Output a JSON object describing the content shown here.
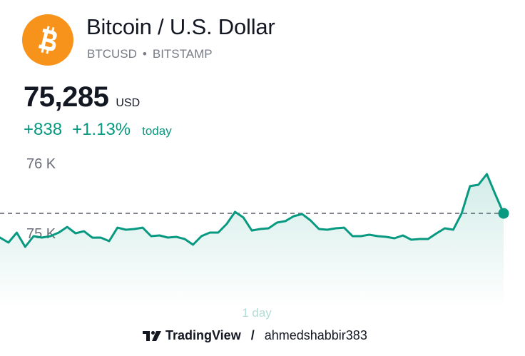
{
  "header": {
    "title": "Bitcoin / U.S. Dollar",
    "symbol": "BTCUSD",
    "separator": "•",
    "exchange": "BITSTAMP",
    "logo_icon": "bitcoin-icon",
    "logo_color": "#f7931a"
  },
  "quote": {
    "price": "75,285",
    "currency": "USD",
    "change_abs": "+838",
    "change_pct": "+1.13%",
    "change_label": "today",
    "up_color": "#089981"
  },
  "chart_data": {
    "type": "area",
    "y_ticks": [
      {
        "value": 76000,
        "label": "76 K"
      },
      {
        "value": 75000,
        "label": "75 K"
      }
    ],
    "period_label": "1 day",
    "current_value": 75285,
    "line_color": "#089981",
    "values": [
      74939,
      74867,
      75009,
      74806,
      74959,
      74939,
      74959,
      75010,
      75091,
      75000,
      75030,
      74938,
      74939,
      74888,
      75081,
      75051,
      75061,
      75081,
      74959,
      74969,
      74939,
      74949,
      74918,
      74837,
      74959,
      75010,
      75010,
      75133,
      75306,
      75225,
      75040,
      75061,
      75071,
      75153,
      75174,
      75245,
      75275,
      75184,
      75061,
      75051,
      75071,
      75081,
      74959,
      74959,
      74980,
      74959,
      74949,
      74929,
      74969,
      74908,
      74918,
      74918,
      74999,
      75071,
      75051,
      75285,
      75674,
      75694,
      75847,
      75561,
      75285
    ]
  },
  "footer": {
    "brand": "TradingView",
    "separator": "/",
    "author": "ahmedshabbir383",
    "brand_icon": "tradingview-logo-icon"
  }
}
